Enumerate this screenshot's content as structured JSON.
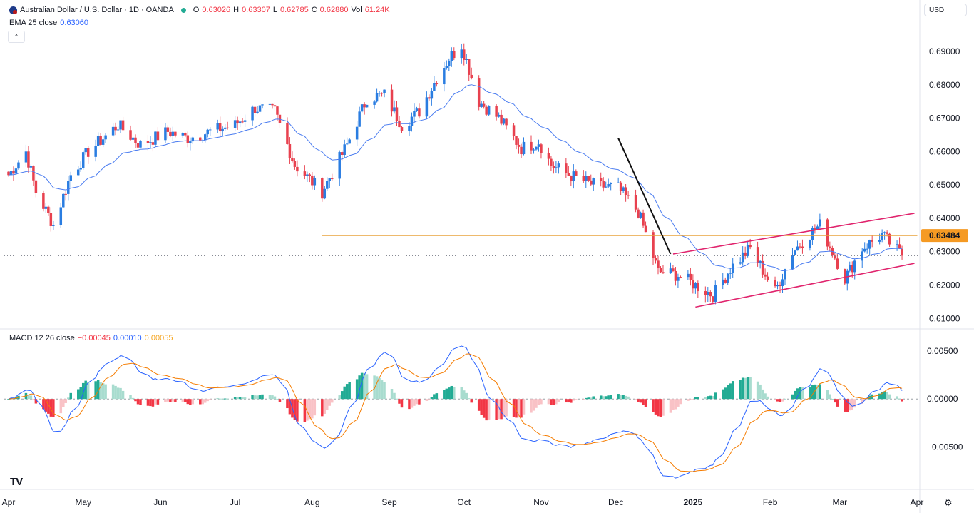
{
  "header": {
    "symbol_title": "Australian Dollar / U.S. Dollar · 1D · OANDA",
    "o_label": "O",
    "o_value": "0.63026",
    "h_label": "H",
    "h_value": "0.63307",
    "l_label": "L",
    "l_value": "0.62785",
    "c_label": "C",
    "c_value": "0.62880",
    "vol_label": "Vol",
    "vol_value": "61.24K",
    "ema_label": "EMA 25 close",
    "ema_value": "0.63060",
    "currency": "USD",
    "collapse_glyph": "^",
    "flag_icon": "au-us-flag-icon",
    "status_icon": "market-open-dot-icon"
  },
  "macd_legend": {
    "label": "MACD 12 26 close",
    "histogram": "−0.00045",
    "macd": "0.00010",
    "signal": "0.00055"
  },
  "colors": {
    "up": "#2a7de1",
    "down": "#e8414f",
    "ema": "#4a7cf0",
    "channel": "#e0246d",
    "support": "#e8a33d",
    "trendline": "#111111",
    "macd_line": "#2962ff",
    "signal_line": "#f57c00",
    "hist_up_strong": "#22ab94",
    "hist_up_weak": "#a8dccf",
    "hist_down_strong": "#f23645",
    "hist_down_weak": "#f9c2c6",
    "price_label_bg": "#f59a23"
  },
  "branding": {
    "logo_text": "TV",
    "logo_icon": "tradingview-logo-icon",
    "settings_icon": "gear-icon"
  },
  "chart_data": [
    {
      "type": "candlestick",
      "ylim": [
        0.6075,
        0.696
      ],
      "x_range": [
        "2024-04-01",
        "2025-04-01"
      ],
      "y_ticks": [
        "0.69000",
        "0.68000",
        "0.67000",
        "0.66000",
        "0.65000",
        "0.64000",
        "0.63000",
        "0.62000",
        "0.61000"
      ],
      "x_ticks": [
        {
          "label": "Apr",
          "date": "2024-04-01",
          "bold": false
        },
        {
          "label": "May",
          "date": "2024-05-01",
          "bold": false
        },
        {
          "label": "Jun",
          "date": "2024-06-01",
          "bold": false
        },
        {
          "label": "Jul",
          "date": "2024-07-01",
          "bold": false
        },
        {
          "label": "Aug",
          "date": "2024-08-01",
          "bold": false
        },
        {
          "label": "Sep",
          "date": "2024-09-01",
          "bold": false
        },
        {
          "label": "Oct",
          "date": "2024-10-01",
          "bold": false
        },
        {
          "label": "Nov",
          "date": "2024-11-01",
          "bold": false
        },
        {
          "label": "Dec",
          "date": "2024-12-01",
          "bold": false
        },
        {
          "label": "2025",
          "date": "2025-01-01",
          "bold": true
        },
        {
          "label": "Feb",
          "date": "2025-02-01",
          "bold": false
        },
        {
          "label": "Mar",
          "date": "2025-03-01",
          "bold": false
        },
        {
          "label": "Apr",
          "date": "2025-04-01",
          "bold": false
        }
      ],
      "price_path": [
        [
          "2024-04-01",
          0.653
        ],
        [
          "2024-04-08",
          0.66
        ],
        [
          "2024-04-12",
          0.648
        ],
        [
          "2024-04-19",
          0.638
        ],
        [
          "2024-04-26",
          0.653
        ],
        [
          "2024-05-03",
          0.66
        ],
        [
          "2024-05-15",
          0.668
        ],
        [
          "2024-05-24",
          0.662
        ],
        [
          "2024-06-04",
          0.666
        ],
        [
          "2024-06-12",
          0.664
        ],
        [
          "2024-06-21",
          0.666
        ],
        [
          "2024-07-01",
          0.668
        ],
        [
          "2024-07-09",
          0.673
        ],
        [
          "2024-07-17",
          0.672
        ],
        [
          "2024-07-25",
          0.656
        ],
        [
          "2024-08-05",
          0.648
        ],
        [
          "2024-08-15",
          0.662
        ],
        [
          "2024-08-23",
          0.676
        ],
        [
          "2024-08-30",
          0.677
        ],
        [
          "2024-09-06",
          0.668
        ],
        [
          "2024-09-13",
          0.672
        ],
        [
          "2024-09-20",
          0.682
        ],
        [
          "2024-09-25",
          0.688
        ],
        [
          "2024-09-30",
          0.692
        ],
        [
          "2024-10-07",
          0.675
        ],
        [
          "2024-10-15",
          0.67
        ],
        [
          "2024-10-24",
          0.661
        ],
        [
          "2024-10-31",
          0.663
        ],
        [
          "2024-11-05",
          0.656
        ],
        [
          "2024-11-12",
          0.653
        ],
        [
          "2024-11-22",
          0.65
        ],
        [
          "2024-12-02",
          0.649
        ],
        [
          "2024-12-10",
          0.642
        ],
        [
          "2024-12-18",
          0.624
        ],
        [
          "2024-12-26",
          0.623
        ],
        [
          "2025-01-02",
          0.62
        ],
        [
          "2025-01-09",
          0.617
        ],
        [
          "2025-01-16",
          0.625
        ],
        [
          "2025-01-24",
          0.631
        ],
        [
          "2025-02-03",
          0.618
        ],
        [
          "2025-02-10",
          0.63
        ],
        [
          "2025-02-18",
          0.636
        ],
        [
          "2025-02-21",
          0.638
        ],
        [
          "2025-03-03",
          0.622
        ],
        [
          "2025-03-10",
          0.631
        ],
        [
          "2025-03-18",
          0.635
        ],
        [
          "2025-03-26",
          0.6288
        ]
      ],
      "series": [
        {
          "name": "EMA 25 close",
          "type": "line",
          "values_ref": "ema of close"
        }
      ],
      "annotations": [
        {
          "kind": "horizontal-support",
          "price": 0.63484,
          "from": "2024-08-05",
          "to": "2025-03-31"
        },
        {
          "kind": "trendline",
          "points": [
            [
              "2024-12-02",
              0.664
            ],
            [
              "2024-12-23",
              0.6293
            ]
          ]
        },
        {
          "kind": "channel-upper",
          "points": [
            [
              "2024-12-24",
              0.6293
            ],
            [
              "2025-03-31",
              0.6415
            ]
          ]
        },
        {
          "kind": "channel-lower",
          "points": [
            [
              "2025-01-02",
              0.6134
            ],
            [
              "2025-03-31",
              0.6265
            ]
          ]
        },
        {
          "kind": "last-price-dotted",
          "price": 0.6288
        },
        {
          "kind": "price-label",
          "text": "0.63484",
          "price": 0.63484
        }
      ]
    },
    {
      "type": "bar",
      "name": "MACD 12 26 close",
      "ylim": [
        -0.009,
        0.0062
      ],
      "y_ticks": [
        "0.00500",
        "0.00000",
        "−0.00500"
      ],
      "series_names": [
        "Histogram",
        "MACD",
        "Signal"
      ]
    }
  ]
}
